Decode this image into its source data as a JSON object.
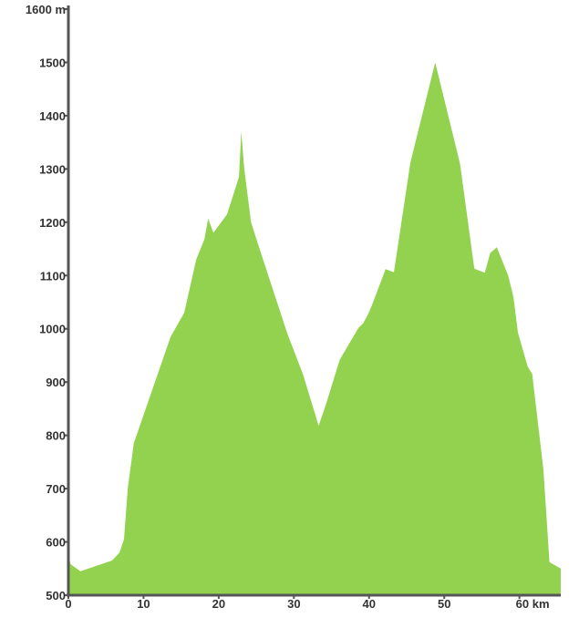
{
  "chart_data": {
    "type": "area",
    "colors": {
      "fill": "#92d24f",
      "axis": "#555555",
      "text": "#333333"
    },
    "grid": false,
    "legend": "none",
    "xlim": [
      0,
      65.5
    ],
    "ylim": [
      500,
      1600
    ],
    "y_ticks": [
      {
        "value": 1600,
        "label": "1600 m"
      },
      {
        "value": 1500,
        "label": "1500"
      },
      {
        "value": 1400,
        "label": "1400"
      },
      {
        "value": 1300,
        "label": "1300"
      },
      {
        "value": 1200,
        "label": "1200"
      },
      {
        "value": 1100,
        "label": "1100"
      },
      {
        "value": 1000,
        "label": "1000"
      },
      {
        "value": 900,
        "label": "900"
      },
      {
        "value": 800,
        "label": "800"
      },
      {
        "value": 700,
        "label": "700"
      },
      {
        "value": 600,
        "label": "600"
      },
      {
        "value": 500,
        "label": "500"
      }
    ],
    "x_ticks": [
      {
        "value": 0,
        "label": "0"
      },
      {
        "value": 10,
        "label": "10"
      },
      {
        "value": 20,
        "label": "20"
      },
      {
        "value": 30,
        "label": "30"
      },
      {
        "value": 40,
        "label": "40"
      },
      {
        "value": 50,
        "label": "50"
      },
      {
        "value": 60,
        "label": "60 km"
      }
    ],
    "series": [
      {
        "x": [
          0,
          0.3,
          1.6,
          5.8,
          6.8,
          7.4,
          7.9,
          8.7,
          13.6,
          15.4,
          17.0,
          18.1,
          18.6,
          19.3,
          21.1,
          22.7,
          23.0,
          23.4,
          24.3,
          25.2,
          29.1,
          31.2,
          33.3,
          34.3,
          36.1,
          38.6,
          39.2,
          39.9,
          40.4,
          42.2,
          43.3,
          45.5,
          48.8,
          52.1,
          54.0,
          55.4,
          56.1,
          57.0,
          58.5,
          59.2,
          59.8,
          61.1,
          61.7,
          63.2,
          64.0,
          65.5
        ],
        "y": [
          575,
          558,
          545,
          565,
          580,
          605,
          700,
          785,
          985,
          1030,
          1130,
          1168,
          1207,
          1180,
          1215,
          1285,
          1370,
          1300,
          1200,
          1160,
          992,
          915,
          818,
          860,
          942,
          1002,
          1010,
          1028,
          1045,
          1112,
          1106,
          1312,
          1500,
          1310,
          1113,
          1105,
          1142,
          1153,
          1100,
          1060,
          993,
          929,
          915,
          735,
          562,
          550
        ]
      }
    ]
  }
}
